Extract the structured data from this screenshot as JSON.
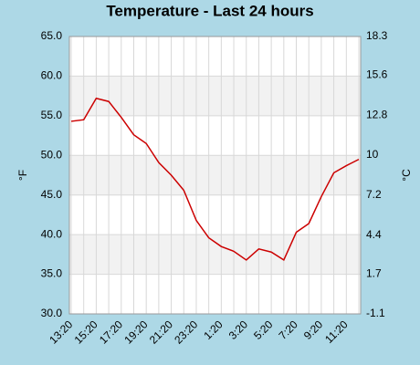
{
  "chart_data": {
    "type": "line",
    "title": "Temperature - Last 24 hours",
    "y_label": "°F",
    "y2_label": "°C",
    "categories": [
      "13:20",
      null,
      "15:20",
      null,
      "17:20",
      null,
      "19:20",
      null,
      "21:20",
      null,
      "23:20",
      null,
      "1:20",
      null,
      "3:20",
      null,
      "5:20",
      null,
      "7:20",
      null,
      "9:20",
      null,
      "11:20",
      null
    ],
    "series": [
      {
        "name": "Temperature",
        "color": "#cc0000",
        "values": [
          54.3,
          54.5,
          57.2,
          56.8,
          54.8,
          52.6,
          51.5,
          49.1,
          47.5,
          45.6,
          41.8,
          39.6,
          38.5,
          37.9,
          36.8,
          38.2,
          37.8,
          36.8,
          40.3,
          41.4,
          44.8,
          47.8,
          48.7,
          49.5
        ]
      }
    ],
    "ylim": [
      30,
      65
    ],
    "yticks": [
      {
        "value": 30,
        "label": "30.0"
      },
      {
        "value": 35,
        "label": "35.0"
      },
      {
        "value": 40,
        "label": "40.0"
      },
      {
        "value": 45,
        "label": "45.0"
      },
      {
        "value": 50,
        "label": "50.0"
      },
      {
        "value": 55,
        "label": "55.0"
      },
      {
        "value": 60,
        "label": "60.0"
      },
      {
        "value": 65,
        "label": "65.0"
      }
    ],
    "y2lim": [
      -1.1,
      18.3
    ],
    "y2ticks": [
      -1.1,
      1.7,
      4.4,
      7.2,
      10,
      12.8,
      15.6,
      18.3
    ],
    "grid": true
  }
}
